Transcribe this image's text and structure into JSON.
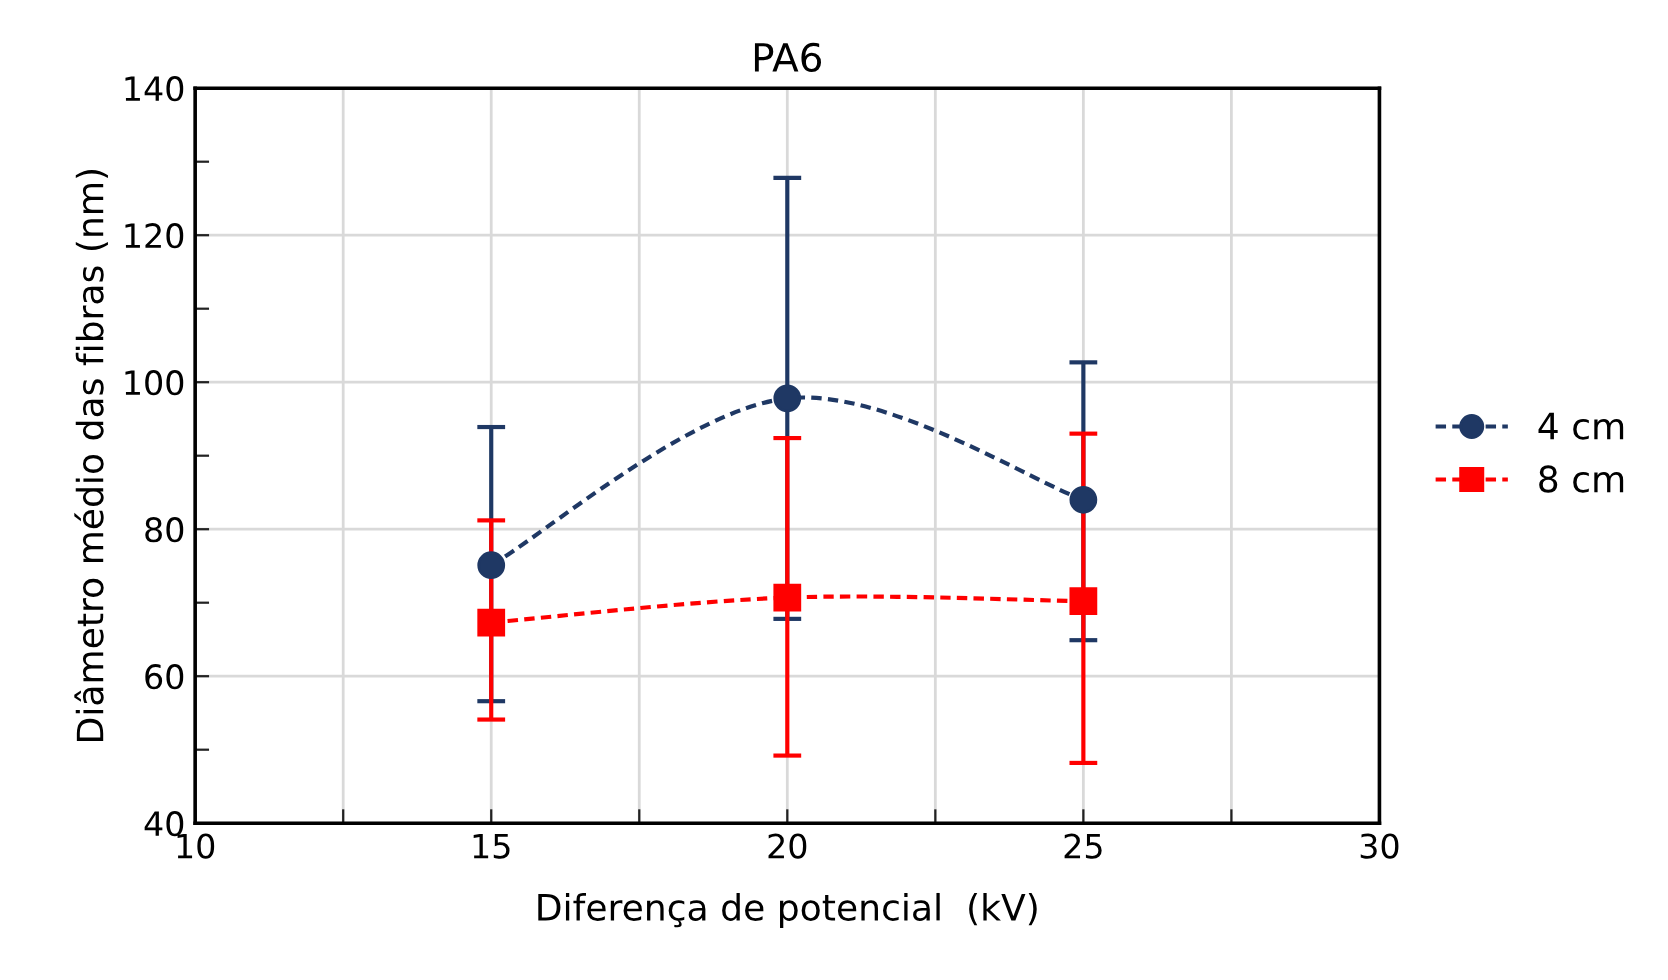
{
  "chart_data": {
    "type": "line",
    "title": "PA6",
    "xlabel": "Diferença de potencial  (kV)",
    "ylabel": "Diâmetro médio das fibras (nm)",
    "x": [
      15,
      20,
      25
    ],
    "series": [
      {
        "name": "4 cm",
        "color": "#1f3864",
        "marker": "circle",
        "values": [
          75.1,
          97.8,
          84.0
        ],
        "errors": [
          [
            56.6,
            93.9
          ],
          [
            67.8,
            127.8
          ],
          [
            64.9,
            102.7
          ]
        ]
      },
      {
        "name": "8 cm",
        "color": "#ff0000",
        "marker": "square",
        "values": [
          67.3,
          70.7,
          70.2
        ],
        "errors": [
          [
            54.1,
            81.2
          ],
          [
            49.2,
            92.4
          ],
          [
            48.2,
            93.0
          ]
        ]
      }
    ],
    "xlim": [
      10,
      30
    ],
    "xticks": [
      10,
      {
        "value": 12.5,
        "label": null
      },
      15,
      {
        "value": 17.5,
        "label": null
      },
      20,
      {
        "value": 22.5,
        "label": null
      },
      25,
      {
        "value": 27.5,
        "label": null
      },
      30
    ],
    "ylim": [
      40,
      140
    ],
    "yticks": [
      40,
      {
        "value": 50,
        "label": null
      },
      60,
      {
        "value": 70,
        "label": null
      },
      80,
      {
        "value": 90,
        "label": null
      },
      100,
      {
        "value": 110,
        "label": null
      },
      120,
      {
        "value": 130,
        "label": null
      },
      140
    ],
    "grid": true,
    "legend": "right",
    "line_style": "dashed"
  }
}
